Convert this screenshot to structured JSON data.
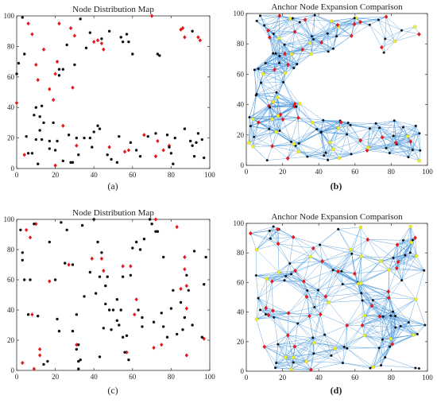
{
  "chart_data": [
    {
      "type": "scatter",
      "panel_label": "(a)",
      "title": "Node Distribution Map",
      "xlim": [
        0,
        100
      ],
      "ylim": [
        0,
        100
      ],
      "xticks": [
        0,
        20,
        40,
        60,
        80,
        100
      ],
      "yticks": [
        0,
        20,
        40,
        60,
        80,
        100
      ],
      "series": [
        {
          "color": "#e41a1c",
          "points": [
            [
              0,
              43
            ],
            [
              6,
              95
            ],
            [
              8,
              88
            ],
            [
              10,
              68
            ],
            [
              11,
              58
            ],
            [
              14,
              78
            ],
            [
              17,
              52
            ],
            [
              19,
              45
            ],
            [
              20,
              62
            ],
            [
              21,
              70
            ],
            [
              22,
              95
            ],
            [
              24,
              28
            ],
            [
              28,
              92
            ],
            [
              29,
              53
            ],
            [
              30,
              87
            ],
            [
              31,
              15
            ],
            [
              40,
              83
            ],
            [
              42,
              84
            ],
            [
              44,
              82
            ],
            [
              45,
              78
            ],
            [
              48,
              14
            ],
            [
              56,
              11
            ],
            [
              58,
              12
            ],
            [
              66,
              22
            ],
            [
              70,
              100
            ],
            [
              72,
              8
            ],
            [
              73,
              18
            ],
            [
              76,
              12
            ],
            [
              79,
              15
            ],
            [
              85,
              91
            ],
            [
              86,
              92
            ],
            [
              87,
              86
            ],
            [
              94,
              86
            ],
            [
              95,
              84
            ],
            [
              4,
              9
            ],
            [
              20,
              2
            ]
          ]
        },
        {
          "color": "#111111",
          "points": [
            [
              0,
              62
            ],
            [
              1,
              69
            ],
            [
              3,
              99
            ],
            [
              4,
              75
            ],
            [
              5,
              21
            ],
            [
              6,
              10
            ],
            [
              8,
              10
            ],
            [
              9,
              35
            ],
            [
              10,
              40
            ],
            [
              10,
              19
            ],
            [
              11,
              3
            ],
            [
              12,
              34
            ],
            [
              12,
              25
            ],
            [
              13,
              41
            ],
            [
              13,
              19
            ],
            [
              14,
              30
            ],
            [
              17,
              13
            ],
            [
              17,
              18
            ],
            [
              19,
              30
            ],
            [
              20,
              12
            ],
            [
              21,
              18
            ],
            [
              22,
              61
            ],
            [
              22,
              65
            ],
            [
              24,
              65
            ],
            [
              24,
              5
            ],
            [
              26,
              81
            ],
            [
              27,
              22
            ],
            [
              28,
              4
            ],
            [
              29,
              4
            ],
            [
              30,
              68
            ],
            [
              31,
              20
            ],
            [
              32,
              9
            ],
            [
              33,
              98
            ],
            [
              35,
              20
            ],
            [
              36,
              79
            ],
            [
              38,
              89
            ],
            [
              38,
              20
            ],
            [
              39,
              14
            ],
            [
              40,
              24
            ],
            [
              42,
              28
            ],
            [
              43,
              26
            ],
            [
              44,
              85
            ],
            [
              47,
              9
            ],
            [
              48,
              90
            ],
            [
              49,
              6
            ],
            [
              52,
              4
            ],
            [
              53,
              21
            ],
            [
              54,
              86
            ],
            [
              55,
              83
            ],
            [
              57,
              88
            ],
            [
              58,
              83
            ],
            [
              59,
              17
            ],
            [
              62,
              12
            ],
            [
              64,
              8
            ],
            [
              68,
              21
            ],
            [
              72,
              23
            ],
            [
              73,
              75
            ],
            [
              74,
              74
            ],
            [
              78,
              22
            ],
            [
              80,
              10
            ],
            [
              81,
              3
            ],
            [
              82,
              20
            ],
            [
              87,
              26
            ],
            [
              90,
              18
            ],
            [
              91,
              15
            ],
            [
              91,
              90
            ],
            [
              93,
              17
            ],
            [
              94,
              23
            ],
            [
              96,
              19
            ],
            [
              97,
              7
            ],
            [
              92,
              8
            ],
            [
              79,
              14
            ],
            [
              60,
              75
            ]
          ]
        }
      ]
    },
    {
      "type": "network",
      "panel_label": "(b)",
      "title": "Anchor Node Expansion Comparison",
      "xlim": [
        0,
        100
      ],
      "ylim": [
        0,
        100
      ],
      "xticks": [
        0,
        20,
        40,
        60,
        80,
        100
      ],
      "yticks": [
        0,
        20,
        40,
        60,
        80,
        100
      ],
      "edge_color": "#3c8fd9",
      "node_colors": {
        "anchor": "#e41a1c",
        "expanded": "#f2ee2a",
        "unknown": "#111111"
      }
    },
    {
      "type": "scatter",
      "panel_label": "(c)",
      "title": "Node Distribution Map",
      "xlim": [
        0,
        100
      ],
      "ylim": [
        0,
        100
      ],
      "xticks": [
        0,
        20,
        40,
        60,
        80,
        100
      ],
      "yticks": [
        0,
        20,
        40,
        60,
        80,
        100
      ],
      "series": [
        {
          "color": "#e41a1c",
          "points": [
            [
              3,
              5
            ],
            [
              5,
              93
            ],
            [
              7,
              88
            ],
            [
              8,
              37
            ],
            [
              10,
              97
            ],
            [
              12,
              14
            ],
            [
              12,
              10
            ],
            [
              17,
              59
            ],
            [
              27,
              70
            ],
            [
              31,
              17
            ],
            [
              39,
              74
            ],
            [
              44,
              74
            ],
            [
              45,
              66
            ],
            [
              55,
              69
            ],
            [
              57,
              12
            ],
            [
              59,
              69
            ],
            [
              61,
              37
            ],
            [
              62,
              47
            ],
            [
              71,
              15
            ],
            [
              72,
              100
            ],
            [
              75,
              17
            ],
            [
              83,
              95
            ],
            [
              85,
              54
            ],
            [
              87,
              75
            ],
            [
              87,
              67
            ],
            [
              88,
              56
            ],
            [
              88,
              41
            ],
            [
              88,
              10
            ],
            [
              97,
              21
            ],
            [
              9,
              1
            ]
          ]
        },
        {
          "color": "#111111",
          "points": [
            [
              2,
              93
            ],
            [
              3,
              78
            ],
            [
              3,
              73
            ],
            [
              4,
              60
            ],
            [
              6,
              37
            ],
            [
              7,
              60
            ],
            [
              9,
              97
            ],
            [
              11,
              36
            ],
            [
              14,
              4
            ],
            [
              16,
              6
            ],
            [
              17,
              85
            ],
            [
              20,
              60
            ],
            [
              21,
              34
            ],
            [
              22,
              26
            ],
            [
              23,
              98
            ],
            [
              25,
              71
            ],
            [
              26,
              93
            ],
            [
              29,
              70
            ],
            [
              29,
              26
            ],
            [
              31,
              14
            ],
            [
              31,
              37
            ],
            [
              32,
              17
            ],
            [
              32,
              6
            ],
            [
              32,
              1
            ],
            [
              33,
              7
            ],
            [
              34,
              96
            ],
            [
              35,
              49
            ],
            [
              38,
              65
            ],
            [
              40,
              100
            ],
            [
              41,
              51
            ],
            [
              42,
              85
            ],
            [
              43,
              62
            ],
            [
              43,
              9
            ],
            [
              44,
              78
            ],
            [
              45,
              28
            ],
            [
              46,
              56
            ],
            [
              46,
              44
            ],
            [
              47,
              62
            ],
            [
              48,
              40
            ],
            [
              49,
              27
            ],
            [
              50,
              40
            ],
            [
              52,
              47
            ],
            [
              52,
              33
            ],
            [
              53,
              30
            ],
            [
              54,
              40
            ],
            [
              55,
              62
            ],
            [
              55,
              22
            ],
            [
              56,
              12
            ],
            [
              57,
              23
            ],
            [
              58,
              7
            ],
            [
              59,
              63
            ],
            [
              60,
              81
            ],
            [
              62,
              85
            ],
            [
              63,
              40
            ],
            [
              64,
              80
            ],
            [
              65,
              35
            ],
            [
              65,
              29
            ],
            [
              66,
              87
            ],
            [
              69,
              100
            ],
            [
              70,
              97
            ],
            [
              71,
              32
            ],
            [
              72,
              92
            ],
            [
              73,
              92
            ],
            [
              75,
              38
            ],
            [
              76,
              75
            ],
            [
              76,
              29
            ],
            [
              78,
              22
            ],
            [
              80,
              41
            ],
            [
              81,
              53
            ],
            [
              83,
              24
            ],
            [
              85,
              45
            ],
            [
              86,
              27
            ],
            [
              87,
              35
            ],
            [
              88,
              63
            ],
            [
              89,
              53
            ],
            [
              91,
              30
            ],
            [
              92,
              79
            ],
            [
              96,
              22
            ],
            [
              97,
              57
            ],
            [
              98,
              75
            ]
          ]
        }
      ]
    },
    {
      "type": "network",
      "panel_label": "(d)",
      "title": "Anchor Node Expansion Comparison",
      "xlim": [
        0,
        100
      ],
      "ylim": [
        0,
        100
      ],
      "xticks": [
        0,
        20,
        40,
        60,
        80,
        100
      ],
      "yticks": [
        0,
        20,
        40,
        60,
        80,
        100
      ],
      "edge_color": "#3c8fd9",
      "node_colors": {
        "anchor": "#e41a1c",
        "expanded": "#f2ee2a",
        "unknown": "#111111"
      }
    }
  ]
}
